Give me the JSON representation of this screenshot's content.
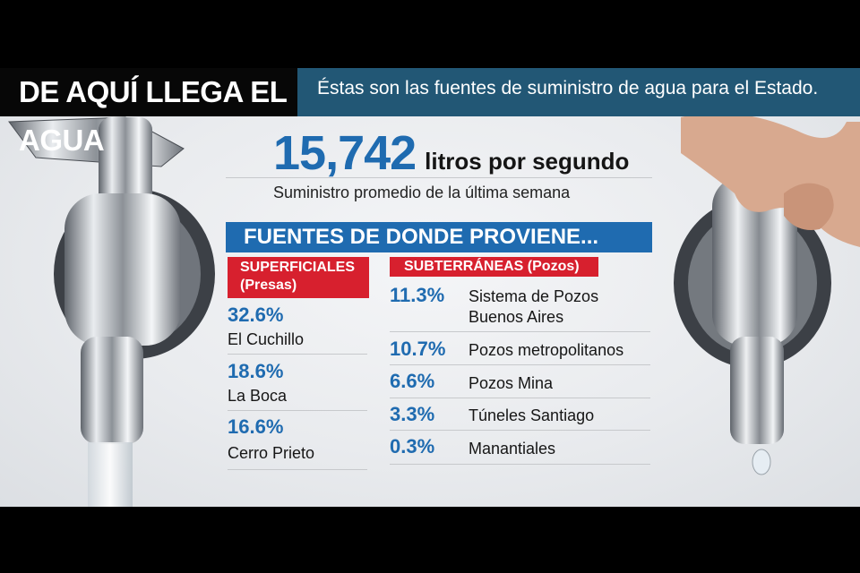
{
  "header": {
    "title": "DE AQUÍ LLEGA EL AGUA",
    "subtitle": "Éstas son las fuentes de suministro de agua para el Estado."
  },
  "total": {
    "value": "15,742",
    "unit": "litros por segundo",
    "caption": "Suministro promedio de la última semana"
  },
  "section_title": "FUENTES DE DONDE PROVIENE...",
  "superficiales": {
    "label_line1": "SUPERFICIALES",
    "label_line2": "(Presas)",
    "items": [
      {
        "pct": "32.6%",
        "name": "El Cuchillo"
      },
      {
        "pct": "18.6%",
        "name": "La Boca"
      },
      {
        "pct": "16.6%",
        "name": "Cerro Prieto"
      }
    ]
  },
  "subterraneas": {
    "label": "SUBTERRÁNEAS (Pozos)",
    "items": [
      {
        "pct": "11.3%",
        "name_line1": "Sistema de Pozos",
        "name_line2": "Buenos Aires"
      },
      {
        "pct": "10.7%",
        "name": "Pozos metropolitanos"
      },
      {
        "pct": "6.6%",
        "name": "Pozos Mina"
      },
      {
        "pct": "3.3%",
        "name": "Túneles Santiago"
      },
      {
        "pct": "0.3%",
        "name": "Manantiales"
      }
    ]
  },
  "colors": {
    "accent_blue": "#1f6bb0",
    "header_blue": "#225775",
    "label_red": "#d7202e",
    "header_black": "#070707"
  }
}
